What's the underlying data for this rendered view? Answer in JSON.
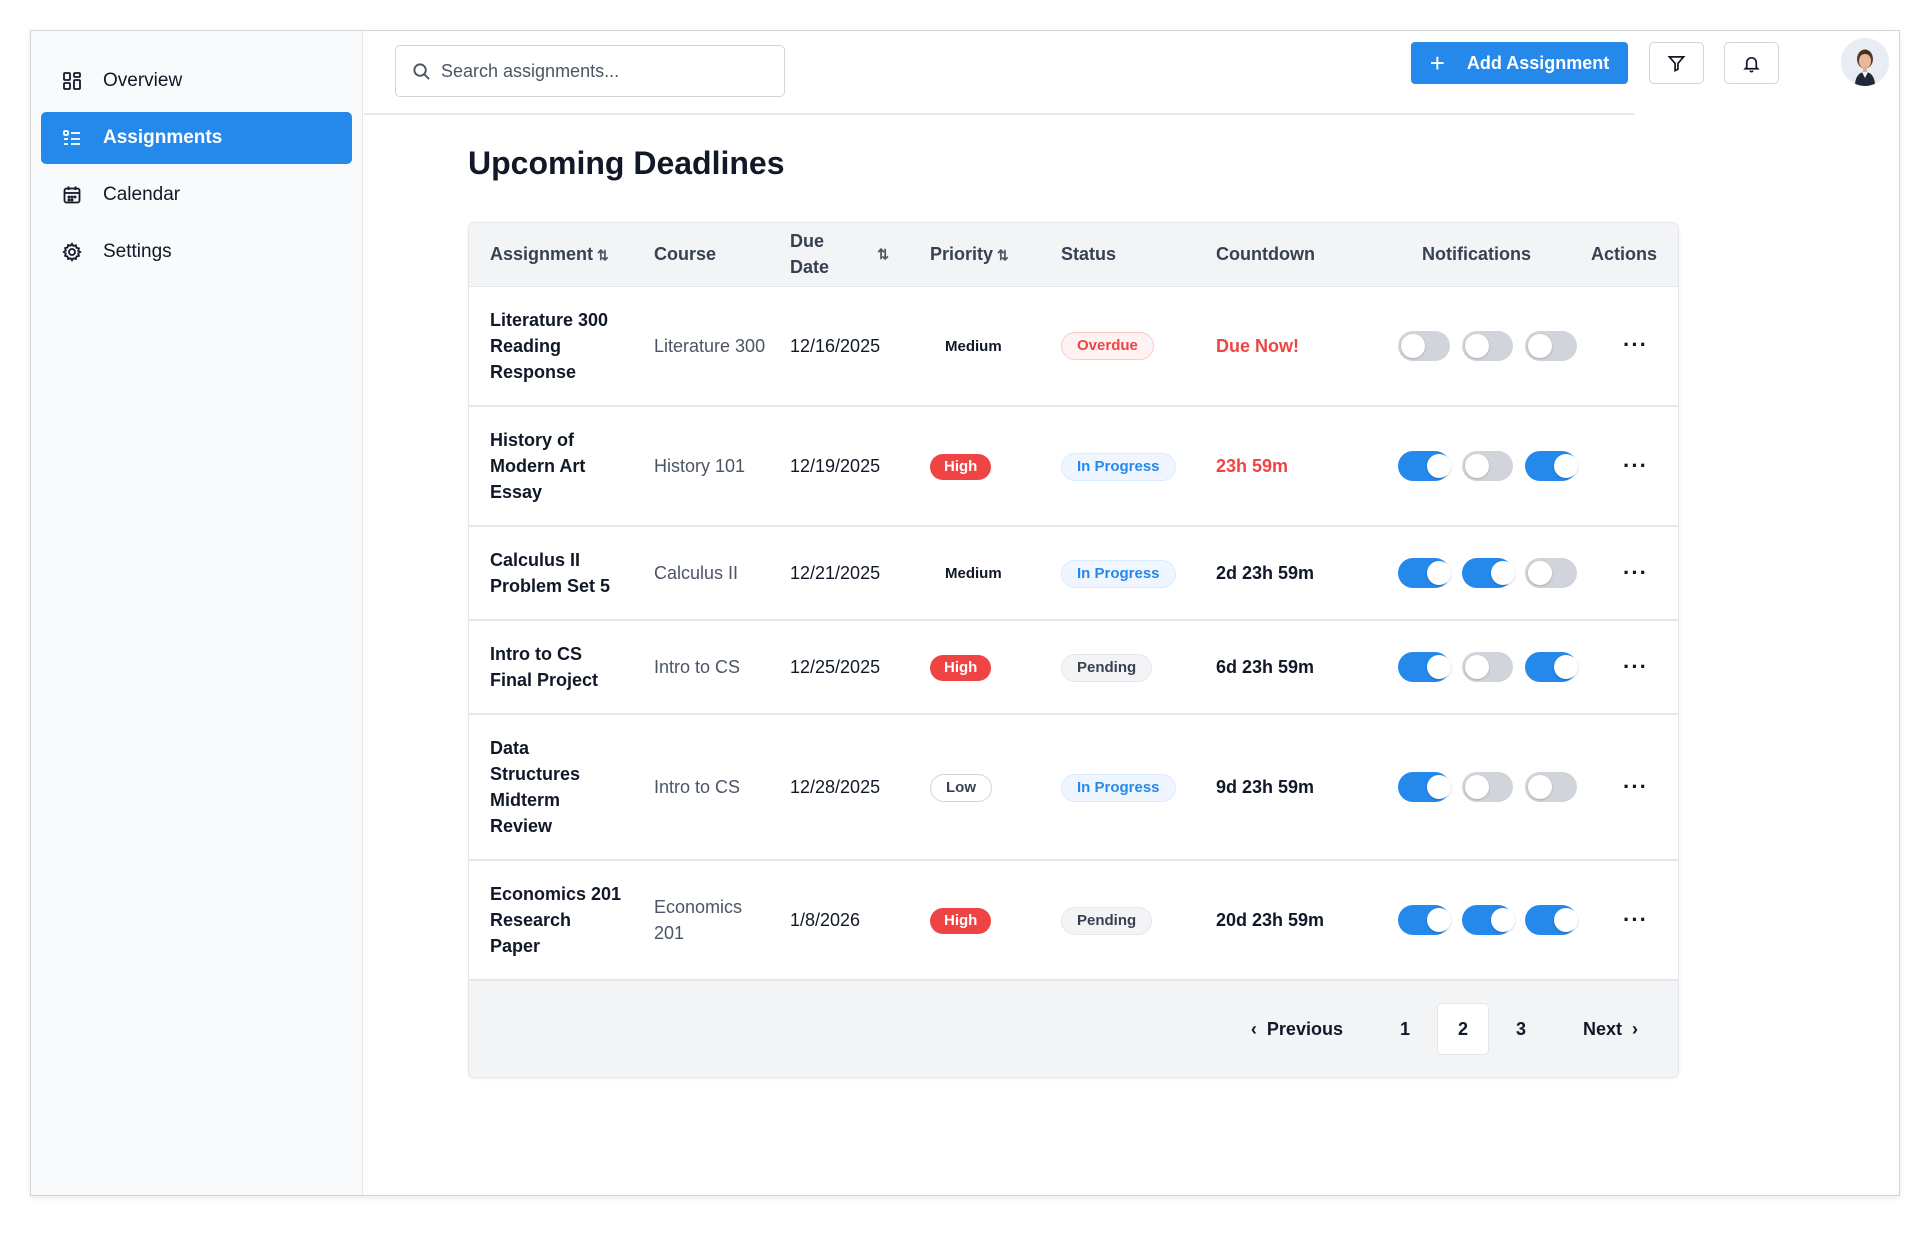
{
  "sidebar": {
    "items": [
      {
        "label": "Overview",
        "icon": "dashboard-icon"
      },
      {
        "label": "Assignments",
        "icon": "list-icon",
        "active": true
      },
      {
        "label": "Calendar",
        "icon": "calendar-icon"
      },
      {
        "label": "Settings",
        "icon": "gear-icon"
      }
    ]
  },
  "header": {
    "search_placeholder": "Search assignments...",
    "add_label": "Add Assignment"
  },
  "main": {
    "title": "Upcoming Deadlines",
    "columns": [
      "Assignment",
      "Course",
      "Due Date",
      "Priority",
      "Status",
      "Countdown",
      "Notifications",
      "Actions"
    ],
    "rows": [
      {
        "title": "Literature 300 Reading Response",
        "course": "Literature 300",
        "due": "12/16/2025",
        "priority": "Medium",
        "status": "Overdue",
        "countdown": "Due Now!",
        "notifications": [
          false,
          false,
          false
        ]
      },
      {
        "title": "History of Modern Art Essay",
        "course": "History 101",
        "due": "12/19/2025",
        "priority": "High",
        "status": "In Progress",
        "countdown": "23h 59m",
        "notifications": [
          true,
          false,
          true
        ]
      },
      {
        "title": "Calculus II Problem Set 5",
        "course": "Calculus II",
        "due": "12/21/2025",
        "priority": "Medium",
        "status": "In Progress",
        "countdown": "2d 23h 59m",
        "notifications": [
          true,
          true,
          false
        ]
      },
      {
        "title": "Intro to CS Final Project",
        "course": "Intro to CS",
        "due": "12/25/2025",
        "priority": "High",
        "status": "Pending",
        "countdown": "6d 23h 59m",
        "notifications": [
          true,
          false,
          true
        ]
      },
      {
        "title": "Data Structures Midterm Review",
        "course": "Intro to CS",
        "due": "12/28/2025",
        "priority": "Low",
        "status": "In Progress",
        "countdown": "9d 23h 59m",
        "notifications": [
          true,
          false,
          false
        ]
      },
      {
        "title": "Economics 201 Research Paper",
        "course": "Economics 201",
        "due": "1/8/2026",
        "priority": "High",
        "status": "Pending",
        "countdown": "20d 23h 59m",
        "notifications": [
          true,
          true,
          true
        ]
      }
    ],
    "actions_glyph": "···"
  },
  "pagination": {
    "previous": "Previous",
    "next": "Next",
    "pages": [
      "1",
      "2",
      "3"
    ],
    "current": "2"
  },
  "colors": {
    "accent": "#2589eb",
    "danger": "#ef4444"
  }
}
